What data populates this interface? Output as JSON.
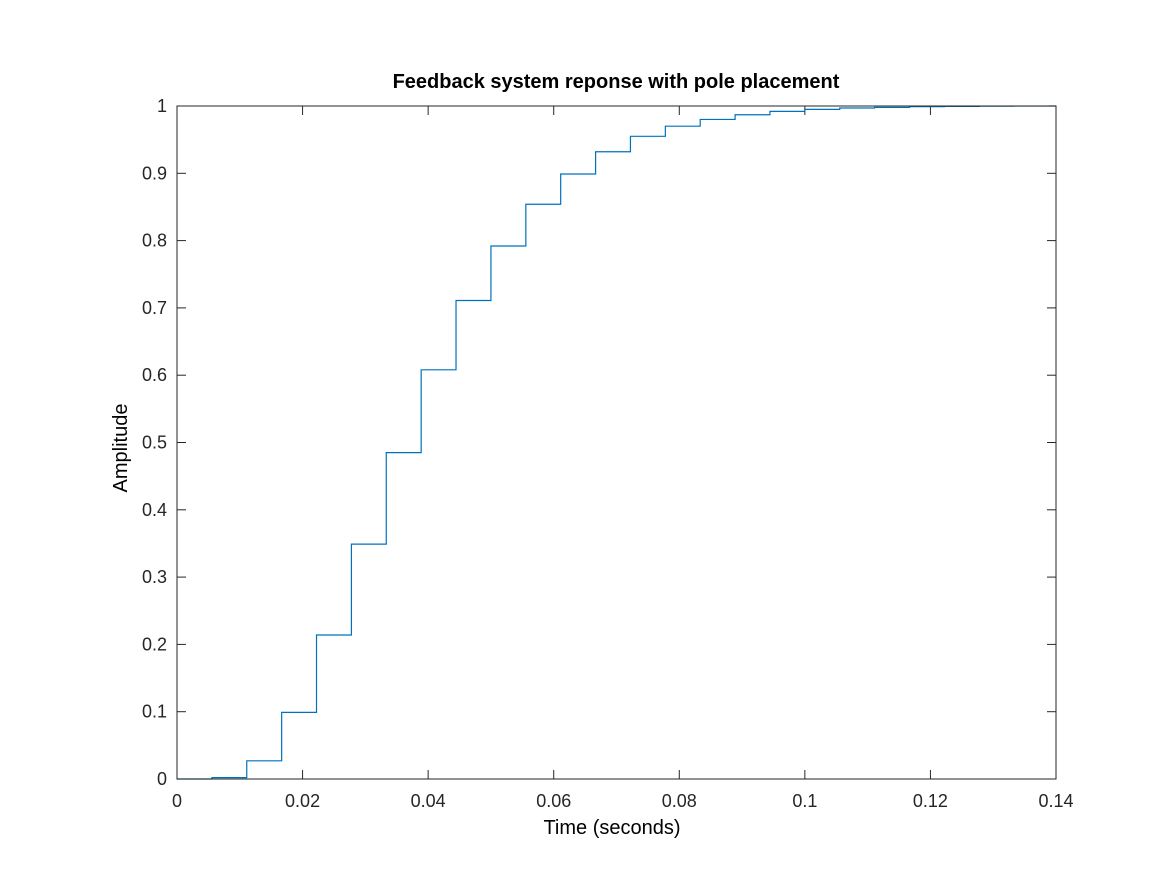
{
  "chart_data": {
    "type": "line",
    "title": "Feedback system reponse with pole placement",
    "xlabel": "Time (seconds)",
    "ylabel": "Amplitude",
    "xlim": [
      0,
      0.14
    ],
    "ylim": [
      0,
      1
    ],
    "xticks": [
      0,
      0.02,
      0.04,
      0.06,
      0.08,
      0.1,
      0.12,
      0.14
    ],
    "xtick_labels": [
      "0",
      "0.02",
      "0.04",
      "0.06",
      "0.08",
      "0.1",
      "0.12",
      "0.14"
    ],
    "yticks": [
      0,
      0.1,
      0.2,
      0.3,
      0.4,
      0.5,
      0.6,
      0.7,
      0.8,
      0.9,
      1
    ],
    "ytick_labels": [
      "0",
      "0.1",
      "0.2",
      "0.3",
      "0.4",
      "0.5",
      "0.6",
      "0.7",
      "0.8",
      "0.9",
      "1"
    ],
    "grid": false,
    "step": true,
    "reference_line": {
      "y": 1,
      "style": "dotted"
    },
    "series": [
      {
        "color": "#0072bd",
        "x": [
          0,
          0.00556,
          0.01111,
          0.01667,
          0.02222,
          0.02778,
          0.03333,
          0.03889,
          0.04444,
          0.05,
          0.05556,
          0.06111,
          0.06667,
          0.07222,
          0.07778,
          0.08333,
          0.08889,
          0.09444,
          0.1,
          0.10556,
          0.11111,
          0.11667,
          0.12222,
          0.12778,
          0.13333,
          0.13889,
          0.14
        ],
        "y": [
          0,
          0.002,
          0.027,
          0.099,
          0.214,
          0.349,
          0.485,
          0.608,
          0.711,
          0.792,
          0.854,
          0.899,
          0.932,
          0.955,
          0.97,
          0.98,
          0.987,
          0.992,
          0.995,
          0.997,
          0.998,
          0.999,
          0.9995,
          0.9998,
          0.9999,
          1.0,
          1.0
        ]
      }
    ]
  }
}
